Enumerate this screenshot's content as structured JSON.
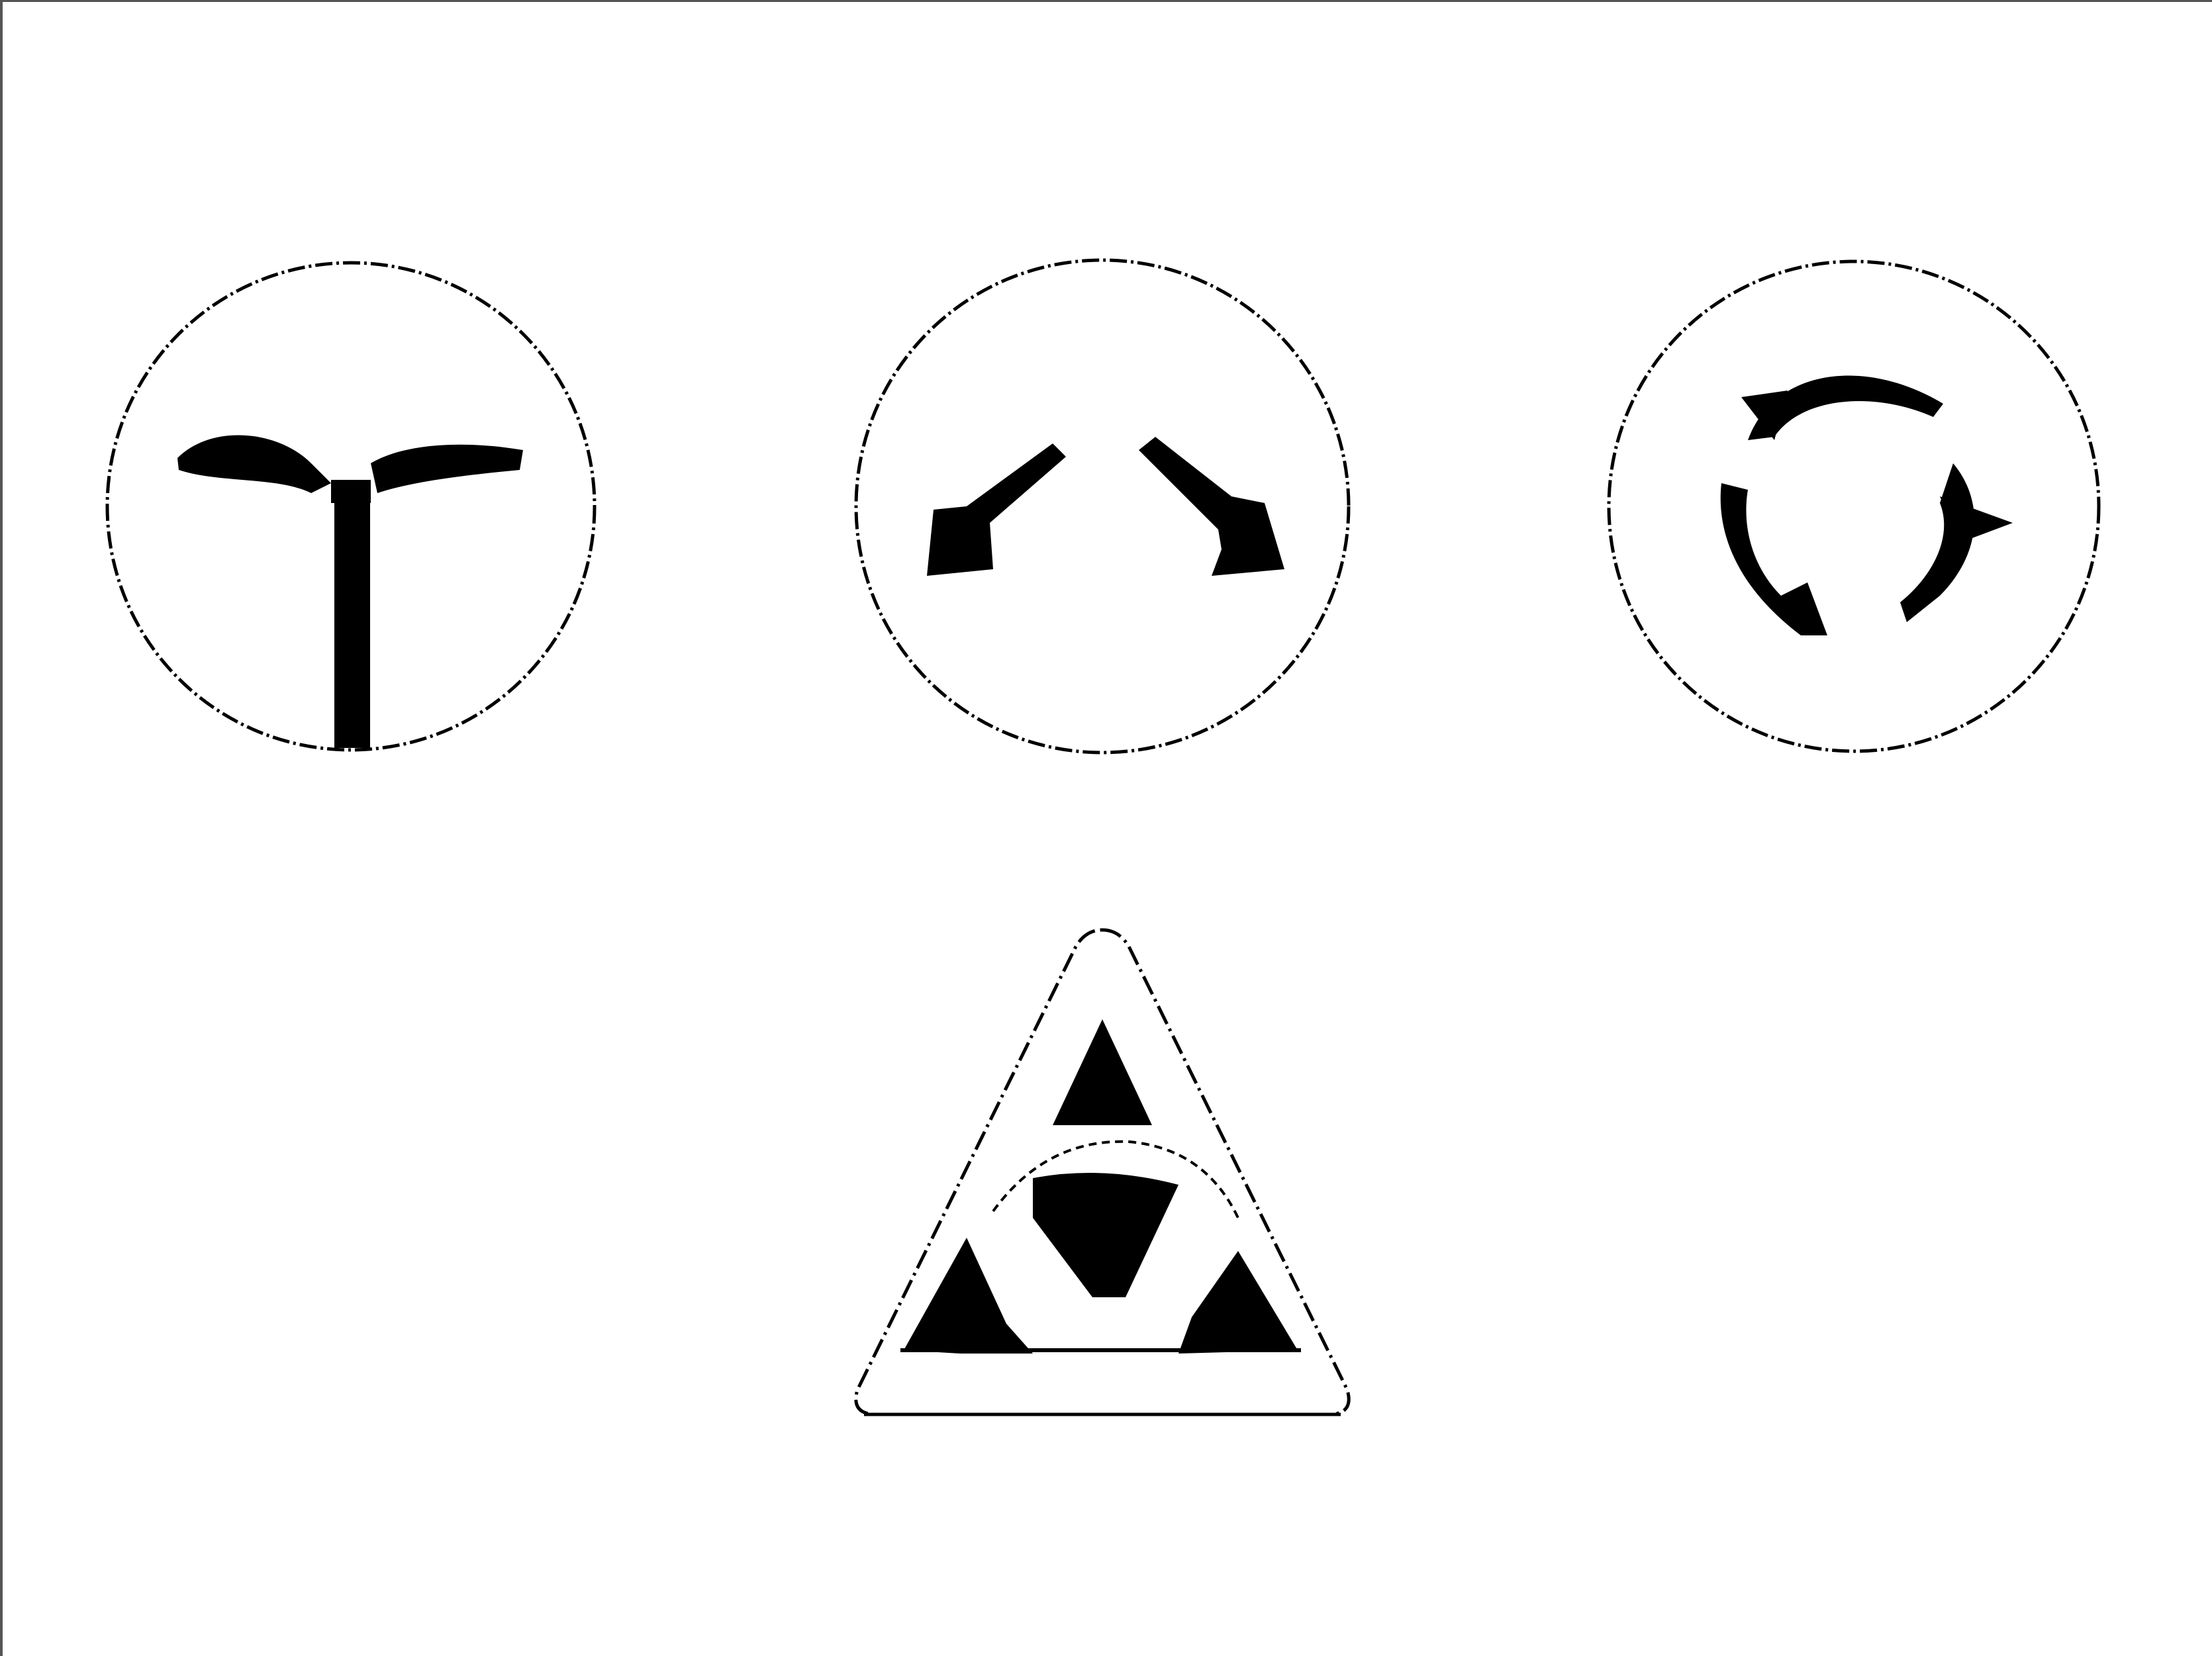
{
  "colors": {
    "background": "#ffffff",
    "ink": "#000000",
    "frame": "#555555"
  },
  "symbols": [
    {
      "icon": "t-junction-icon",
      "shape": "circle"
    },
    {
      "icon": "two-arrows-diverging-icon",
      "shape": "circle"
    },
    {
      "icon": "roundabout-arrows-icon",
      "shape": "circle"
    },
    {
      "icon": "roundabout-warning-triangle-icon",
      "shape": "triangle"
    }
  ]
}
